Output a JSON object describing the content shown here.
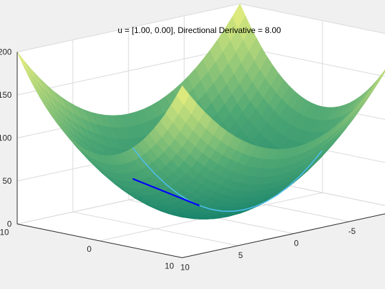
{
  "chart_data": {
    "type": "surface",
    "title": "u = [1.00, 0.00], Directional Derivative = 8.00",
    "function": "z = x^2 + y^2",
    "xlim": [
      -10,
      10
    ],
    "ylim": [
      -10,
      10
    ],
    "zlim": [
      0,
      200
    ],
    "x_ticks": [
      "-10",
      "-5",
      "0",
      "5",
      "10"
    ],
    "y_ticks": [
      "-10",
      "0",
      "10"
    ],
    "z_ticks": [
      "0",
      "50",
      "100",
      "150",
      "200"
    ],
    "grid": true,
    "colormap": "parula-like",
    "colors": {
      "surface_low": "#16826c",
      "surface_mid": "#4fa874",
      "surface_high": "#eef27e",
      "trace_curve": "#4dbeee",
      "derivative_line": "#0000ff",
      "axis": "#262626",
      "grid": "#d9d9d9",
      "background": "#f0f0f0",
      "axes_background": "#ffffff"
    },
    "series": [
      {
        "x": [
          -7,
          -6,
          -5,
          -4,
          -3,
          -2,
          -1,
          0,
          1,
          2,
          3,
          4,
          5,
          6,
          7,
          8,
          9,
          10
        ],
        "y": [
          4,
          4,
          4,
          4,
          4,
          4,
          4,
          4,
          4,
          4,
          4,
          4,
          4,
          4,
          4,
          4,
          4,
          4
        ],
        "z": [
          65,
          52,
          41,
          32,
          25,
          20,
          17,
          16,
          17,
          20,
          25,
          32,
          41,
          52,
          65,
          80,
          97,
          116
        ]
      },
      {
        "x": [
          4,
          10
        ],
        "y": [
          4,
          4
        ],
        "z": [
          32,
          80
        ]
      }
    ]
  }
}
